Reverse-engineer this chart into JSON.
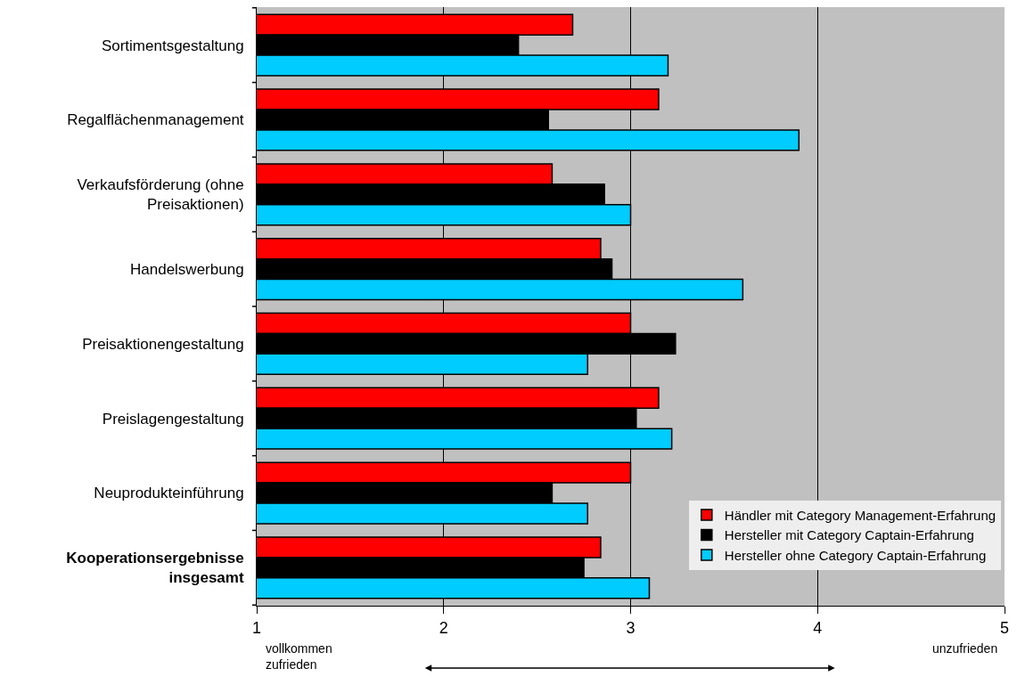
{
  "chart_data": {
    "type": "bar",
    "orientation": "horizontal",
    "categories": [
      "Sortimentsgestaltung",
      "Regalflächenmanagement",
      "Verkaufsförderung (ohne Preisaktionen)",
      "Handelswerbung",
      "Preisaktionengestaltung",
      "Preislagengestaltung",
      "Neuprodukteinführung",
      "Kooperationsergebnisse insgesamt"
    ],
    "series": [
      {
        "name": "Händler mit Category Management-Erfahrung",
        "color": "#ff0000",
        "values": [
          2.69,
          3.15,
          2.58,
          2.84,
          3.0,
          3.15,
          3.0,
          2.84
        ]
      },
      {
        "name": "Hersteller mit Category Captain-Erfahrung",
        "color": "#000000",
        "values": [
          2.4,
          2.56,
          2.86,
          2.9,
          3.24,
          3.03,
          2.58,
          2.75
        ]
      },
      {
        "name": "Hersteller ohne Category Captain-Erfahrung",
        "color": "#00ccff",
        "values": [
          3.2,
          3.9,
          3.0,
          3.6,
          2.77,
          3.22,
          2.77,
          3.1
        ]
      }
    ],
    "xlim": [
      1,
      5
    ],
    "xticks": [
      1,
      2,
      3,
      4,
      5
    ],
    "grid": "x",
    "legend": "bottom right",
    "annotations": [
      "vollkommen zufrieden",
      "unzufrieden"
    ]
  }
}
